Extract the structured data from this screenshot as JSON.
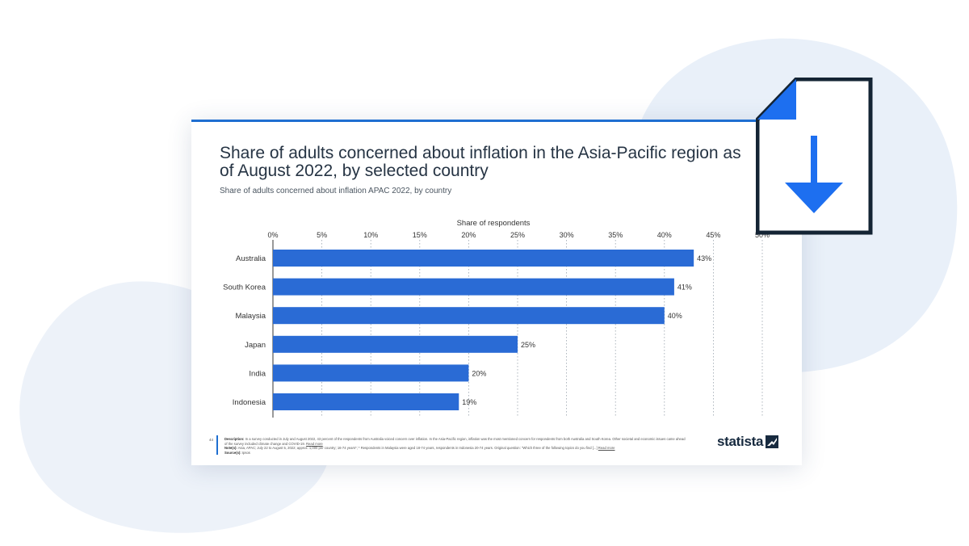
{
  "theme": {
    "accent": "#1f6fd1",
    "bar_color": "#2a6bd5",
    "blob_color": "#e8eff8",
    "icon_blue": "#1d6ff0",
    "icon_frame": "#142434"
  },
  "card": {
    "title": "Share of adults concerned about inflation in the Asia-Pacific region as of August 2022, by selected country",
    "subtitle": "Share of adults concerned about inflation APAC 2022, by country"
  },
  "chart_data": {
    "type": "bar",
    "orientation": "horizontal",
    "categories": [
      "Australia",
      "South Korea",
      "Malaysia",
      "Japan",
      "India",
      "Indonesia"
    ],
    "values": [
      43,
      41,
      40,
      25,
      20,
      19
    ],
    "value_labels": [
      "43%",
      "41%",
      "40%",
      "25%",
      "20%",
      "19%"
    ],
    "xlabel": "Share of respondents",
    "xlim": [
      0,
      50
    ],
    "ticks": [
      "0%",
      "5%",
      "10%",
      "15%",
      "20%",
      "25%",
      "30%",
      "35%",
      "40%",
      "45%",
      "50%"
    ],
    "tick_values": [
      0,
      5,
      10,
      15,
      20,
      25,
      30,
      35,
      40,
      45,
      50
    ],
    "grid": true,
    "axis_position": "top"
  },
  "footer": {
    "page_number": "44",
    "description_label": "Description:",
    "description": "In a survey conducted in July and August 2022, 43 percent of the respondents from Australia voiced concern over inflation. In the Asia-Pacific region, inflation was the most mentioned concern for respondents from both Australia and South Korea. Other societal and economic issues came ahead of the survey included climate change and COVID-19.",
    "read_more": "Read more",
    "notes_label": "Note(s):",
    "notes": "Asia, APAC; July 22 to August 5, 2022; approx. 1,000 per country; 16-74 years*; * Respondents in Malaysia were aged 18-74 years, respondents in Indonesia 20-74 years. Original question: \"Which three of the following topics do you find [...]",
    "source_label": "Source(s):",
    "source": "Ipsos"
  },
  "brand": {
    "name": "statista"
  },
  "icons": {
    "download": "file-download-icon",
    "brand_mark": "statista-logo-mark-icon"
  }
}
